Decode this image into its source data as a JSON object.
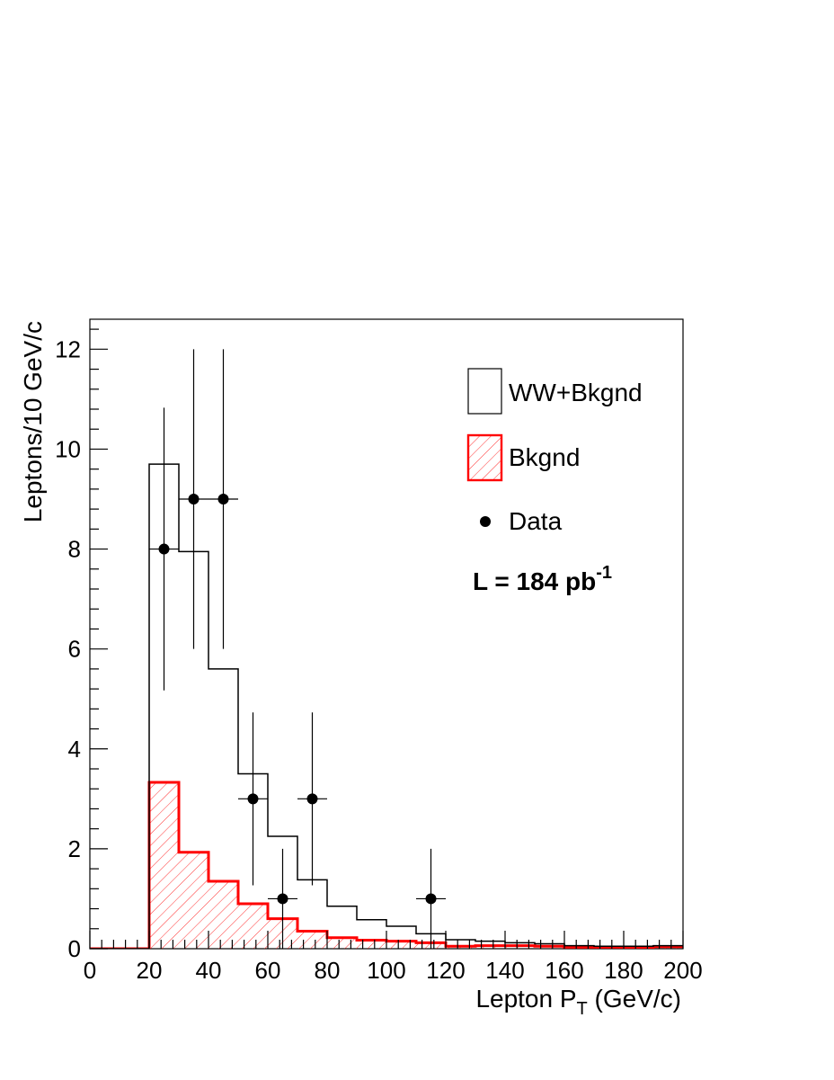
{
  "chart_data": {
    "type": "histogram",
    "xlabel": "Lepton P",
    "xlabel_sub": "T",
    "xlabel_suffix": " (GeV/c)",
    "ylabel": "Leptons/10 GeV/c",
    "xlim": [
      0,
      200
    ],
    "ylim": [
      0,
      12.6
    ],
    "x_ticks": [
      0,
      20,
      40,
      60,
      80,
      100,
      120,
      140,
      160,
      180,
      200
    ],
    "x_tick_labels": [
      "0",
      "20",
      "40",
      "60",
      "80",
      "100",
      "120",
      "140",
      "160",
      "180",
      "200"
    ],
    "y_ticks": [
      0,
      2,
      4,
      6,
      8,
      10,
      12
    ],
    "y_tick_labels": [
      "0",
      "2",
      "4",
      "6",
      "8",
      "10",
      "12"
    ],
    "bin_edges": [
      0,
      10,
      20,
      30,
      40,
      50,
      60,
      70,
      80,
      90,
      100,
      110,
      120,
      130,
      140,
      150,
      160,
      170,
      180,
      190,
      200
    ],
    "series": [
      {
        "name": "WW+Bkgnd",
        "style": "outline",
        "color": "#000000",
        "values": [
          0,
          0,
          9.7,
          7.95,
          5.6,
          3.5,
          2.25,
          1.38,
          0.85,
          0.58,
          0.45,
          0.3,
          0.18,
          0.15,
          0.12,
          0.1,
          0.06,
          0.05,
          0.05,
          0.06
        ]
      },
      {
        "name": "Bkgnd",
        "style": "hatched",
        "color": "#ff0000",
        "values": [
          0,
          0,
          3.33,
          1.93,
          1.35,
          0.9,
          0.6,
          0.35,
          0.22,
          0.17,
          0.15,
          0.12,
          0.05,
          0.06,
          0.06,
          0.05,
          0.03,
          0.03,
          0.02,
          0.04
        ]
      },
      {
        "name": "Data",
        "style": "points",
        "color": "#000000",
        "points": [
          {
            "x": 25,
            "y": 8,
            "err": 2.83
          },
          {
            "x": 35,
            "y": 9,
            "err": 3.0
          },
          {
            "x": 45,
            "y": 9,
            "err": 3.0
          },
          {
            "x": 55,
            "y": 3,
            "err": 1.73
          },
          {
            "x": 65,
            "y": 1,
            "err": 1.0
          },
          {
            "x": 75,
            "y": 3,
            "err": 1.73
          },
          {
            "x": 115,
            "y": 1,
            "err": 1.0
          }
        ]
      }
    ],
    "legend": [
      {
        "label": "WW+Bkgnd",
        "style": "outline"
      },
      {
        "label": "Bkgnd",
        "style": "hatched"
      },
      {
        "label": "Data",
        "style": "marker"
      }
    ],
    "luminosity": {
      "text": "L = 184 pb",
      "superscript": "-1"
    }
  }
}
